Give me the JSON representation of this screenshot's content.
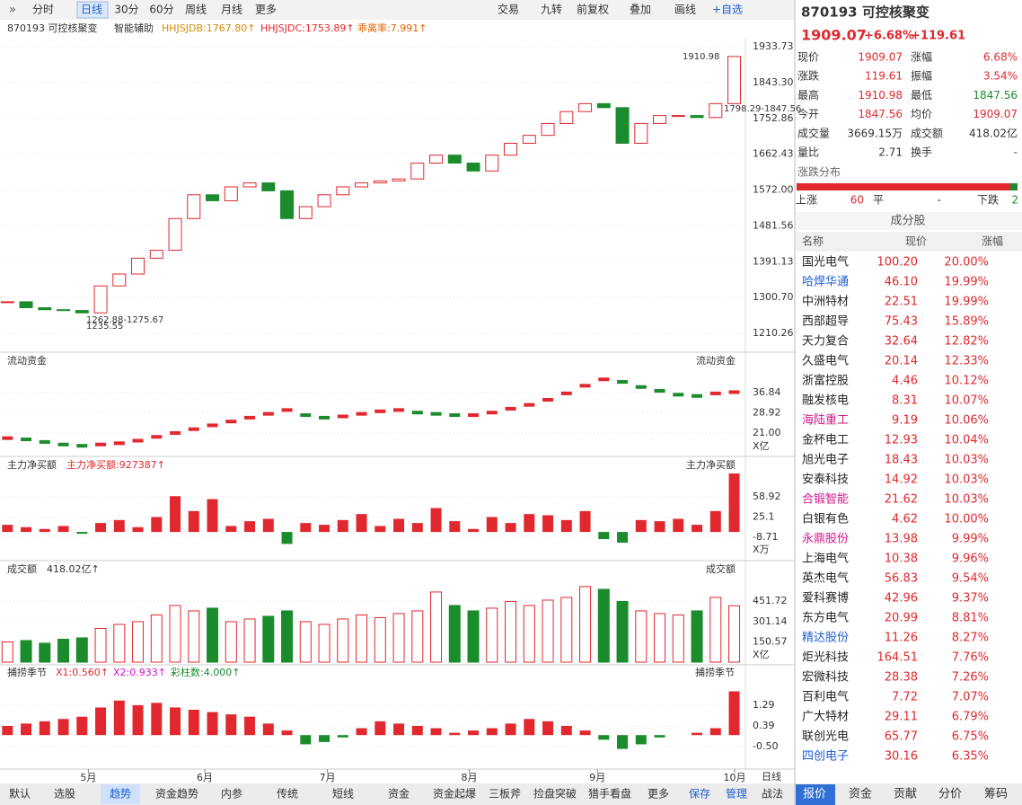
{
  "toolbar": {
    "left": [
      "分时",
      "日线",
      "30分",
      "60分",
      "周线",
      "月线",
      "更多"
    ],
    "right": [
      "交易",
      "九转",
      "前复权",
      "叠加",
      "画线",
      "+自选"
    ]
  },
  "price": {
    "code_name": "870193 可控核聚变",
    "assist": "智能辅助",
    "indicators": [
      "HHJSJDB:1767.80↑",
      "HHJSJDC:1753.89↑",
      "乖离率:7.991↑"
    ],
    "ylim": [
      1167.3,
      1960.9
    ],
    "yticks": [
      1933.73,
      {
        "value": 1843.3,
        "label": "1843.30"
      },
      1752.86,
      1662.43,
      {
        "value": 1572,
        "label": "1572.00"
      },
      1481.56,
      1391.13,
      {
        "value": 1300.7,
        "label": "1300.70"
      },
      1210.26
    ],
    "values": [
      1290,
      1275,
      1270,
      1268,
      1262,
      1330,
      1360,
      1400,
      1420,
      1500,
      1560,
      1545,
      1580,
      1590,
      1570,
      1500,
      1530,
      1560,
      1580,
      1590,
      1595,
      1600,
      1640,
      1660,
      1640,
      1620,
      1660,
      1690,
      1710,
      1740,
      1770,
      1790,
      1780,
      1690,
      1740,
      1760,
      1760,
      1755,
      1790,
      1909.07
    ],
    "annotations": [
      "1910.98",
      "1798.29-1847.56",
      "1262.88-1275.67",
      "1235.55"
    ]
  },
  "flow": {
    "label": "流动资金",
    "ylim": [
      12.9,
      46.3
    ],
    "yticks": [
      36.84,
      28.92,
      {
        "value": 21,
        "label": "21.00"
      }
    ],
    "unit": "X亿",
    "values": [
      19,
      18.5,
      17.5,
      16.5,
      16,
      16.5,
      17,
      18,
      19.5,
      21,
      22.5,
      24,
      25.5,
      27,
      28.5,
      30,
      28,
      27,
      27.5,
      28.5,
      29.5,
      30,
      29,
      28.5,
      28,
      28,
      29,
      30.5,
      32,
      34,
      36.5,
      39.5,
      42,
      41,
      39,
      37.5,
      36,
      35.5,
      36.5,
      37
    ]
  },
  "net": {
    "label": "主力净买额",
    "indicator": "主力净买额:927387↑",
    "ylim": [
      -42,
      101
    ],
    "yticks": [
      58.92,
      25.1,
      -8.71
    ],
    "unit": "X万",
    "values": [
      12,
      8,
      5,
      10,
      -3,
      15,
      20,
      8,
      25,
      60,
      35,
      55,
      10,
      18,
      22,
      -20,
      15,
      12,
      20,
      30,
      10,
      22,
      15,
      40,
      18,
      5,
      25,
      15,
      30,
      28,
      20,
      35,
      -12,
      -18,
      20,
      18,
      22,
      12,
      35,
      98
    ]
  },
  "volume": {
    "label": "成交额",
    "indicator": "418.02亿↑",
    "ylim": [
      0,
      646
    ],
    "yticks": [
      451.72,
      301.14,
      150.57
    ],
    "unit": "X亿",
    "values": [
      150,
      160,
      140,
      170,
      180,
      250,
      280,
      300,
      350,
      420,
      380,
      400,
      300,
      320,
      340,
      380,
      300,
      280,
      320,
      350,
      330,
      360,
      380,
      520,
      420,
      380,
      400,
      450,
      420,
      460,
      480,
      560,
      540,
      450,
      380,
      360,
      350,
      380,
      480,
      418
    ]
  },
  "capture": {
    "label": "捕捞季节",
    "indicators": [
      "X1:0.560↑",
      "X2:0.933↑",
      "彩柱数:4.000↑"
    ],
    "ylim": [
      -1.24,
      2.27
    ],
    "yticks": [
      1.29,
      0.39,
      {
        "value": -0.5,
        "label": "-0.50"
      }
    ],
    "values": [
      0.4,
      0.5,
      0.6,
      0.7,
      0.8,
      1.2,
      1.5,
      1.3,
      1.4,
      1.2,
      1.1,
      1.0,
      0.9,
      0.8,
      0.5,
      0.2,
      -0.4,
      -0.3,
      -0.1,
      0.3,
      0.6,
      0.5,
      0.4,
      0.3,
      0.1,
      0.2,
      0.3,
      0.5,
      0.7,
      0.6,
      0.4,
      0.2,
      -0.2,
      -0.6,
      -0.4,
      -0.1,
      0.0,
      0.1,
      0.3,
      1.9
    ]
  },
  "xaxis": {
    "xlim": [
      -0.4,
      39.6
    ],
    "xticks": [
      {
        "value": 4.34,
        "label": "5月"
      },
      {
        "value": 10.59,
        "label": "6月"
      },
      {
        "value": 17.17,
        "label": "7月"
      },
      {
        "value": 24.78,
        "label": "8月"
      },
      {
        "value": 31.66,
        "label": "9月"
      },
      {
        "value": 39.02,
        "label": "10月"
      }
    ],
    "period": "日线"
  },
  "bottom_tabs": {
    "left": [
      "默认",
      "选股",
      "趋势",
      "资金趋势",
      "内参",
      "传统",
      "短线",
      "资金",
      "资金起爆",
      "三板斧",
      "捡盘突破",
      "猎手看盘",
      "更多",
      "保存",
      "管理",
      "战法"
    ],
    "right": [
      "报价",
      "资金",
      "贡献",
      "分价",
      "筹码"
    ]
  },
  "quote": {
    "title": "870193 可控核聚变",
    "price": "1909.07",
    "pct": "+6.68%",
    "chg": "+119.61",
    "rows": [
      [
        "现价",
        "1909.07",
        "涨幅",
        "6.68%"
      ],
      [
        "涨跌",
        "119.61",
        "振幅",
        "3.54%"
      ],
      [
        "最高",
        "1910.98",
        "最低",
        "1847.56"
      ],
      [
        "今开",
        "1847.56",
        "均价",
        "1909.07"
      ],
      [
        "成交量",
        "3669.15万",
        "成交额",
        "418.02亿"
      ],
      [
        "量比",
        "2.71",
        "换手",
        "-"
      ]
    ],
    "dist_title": "涨跌分布",
    "up_label": "上涨",
    "up": 60,
    "flat_label": "平",
    "flat": "-",
    "down_label": "下跌",
    "down": 2
  },
  "constituents": {
    "title": "成分股",
    "headers": [
      "名称",
      "现价",
      "涨幅"
    ],
    "rows": [
      {
        "name": "国光电气",
        "price": "100.20",
        "change": "20.00%"
      },
      {
        "name": "哈焊华通",
        "price": "46.10",
        "change": "19.99%",
        "color": "#1e5fd0"
      },
      {
        "name": "中洲特材",
        "price": "22.51",
        "change": "19.99%"
      },
      {
        "name": "西部超导",
        "price": "75.43",
        "change": "15.89%"
      },
      {
        "name": "天力复合",
        "price": "32.64",
        "change": "12.82%"
      },
      {
        "name": "久盛电气",
        "price": "20.14",
        "change": "12.33%"
      },
      {
        "name": "浙富控股",
        "price": "4.46",
        "change": "10.12%"
      },
      {
        "name": "融发核电",
        "price": "8.31",
        "change": "10.07%"
      },
      {
        "name": "海陆重工",
        "price": "9.19",
        "change": "10.06%",
        "color": "#d0178a"
      },
      {
        "name": "金杯电工",
        "price": "12.93",
        "change": "10.04%"
      },
      {
        "name": "旭光电子",
        "price": "18.43",
        "change": "10.03%"
      },
      {
        "name": "安泰科技",
        "price": "14.92",
        "change": "10.03%"
      },
      {
        "name": "合锻智能",
        "price": "21.62",
        "change": "10.03%",
        "color": "#d0178a"
      },
      {
        "name": "白银有色",
        "price": "4.62",
        "change": "10.00%"
      },
      {
        "name": "永鼎股份",
        "price": "13.98",
        "change": "9.99%",
        "color": "#d0178a"
      },
      {
        "name": "上海电气",
        "price": "10.38",
        "change": "9.96%"
      },
      {
        "name": "英杰电气",
        "price": "56.83",
        "change": "9.54%"
      },
      {
        "name": "爱科赛博",
        "price": "42.96",
        "change": "9.37%"
      },
      {
        "name": "东方电气",
        "price": "20.99",
        "change": "8.81%"
      },
      {
        "name": "精达股份",
        "price": "11.26",
        "change": "8.27%",
        "color": "#1e5fd0"
      },
      {
        "name": "炬光科技",
        "price": "164.51",
        "change": "7.76%"
      },
      {
        "name": "宏微科技",
        "price": "28.38",
        "change": "7.26%"
      },
      {
        "name": "百利电气",
        "price": "7.72",
        "change": "7.07%"
      },
      {
        "name": "广大特材",
        "price": "29.11",
        "change": "6.79%"
      },
      {
        "name": "联创光电",
        "price": "65.77",
        "change": "6.75%"
      },
      {
        "name": "四创电子",
        "price": "30.16",
        "change": "6.35%",
        "color": "#1e5fd0"
      }
    ]
  }
}
